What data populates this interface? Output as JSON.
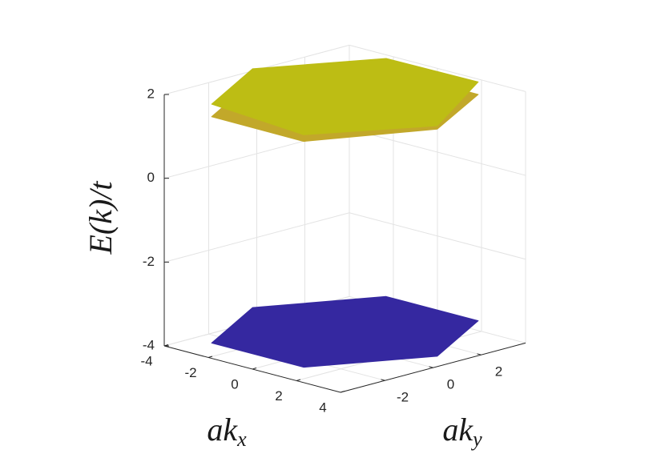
{
  "chart_data": {
    "type": "surface3d",
    "xlabel": {
      "base": "ak",
      "subscript": "x"
    },
    "ylabel": {
      "base": "ak",
      "subscript": "y"
    },
    "zlabel": "E(k)/t",
    "xlim": [
      -4,
      4
    ],
    "ylim": [
      -3.85,
      3.85
    ],
    "zlim": [
      -4,
      2
    ],
    "xticks": [
      -4,
      -2,
      0,
      2,
      4
    ],
    "yticks": [
      -2,
      0,
      2
    ],
    "zticks": [
      -4,
      -2,
      0,
      2
    ],
    "grid": true,
    "vertices_x": [
      4.19,
      2.09,
      -2.09,
      -4.19,
      -2.09,
      2.09
    ],
    "vertices_y": [
      0,
      3.63,
      3.63,
      0,
      -3.63,
      -3.63
    ],
    "series": [
      {
        "color": "#3528a0",
        "values": [
          -3.7,
          -3.7,
          -3.7,
          -3.7,
          -3.7,
          -3.7
        ]
      },
      {
        "color": "#c2a82a",
        "values": [
          1.72,
          1.7,
          1.72,
          1.7,
          1.7,
          1.69
        ]
      },
      {
        "color": "#bdbd14",
        "values": [
          1.8,
          2.0,
          1.98,
          2.0,
          2.0,
          1.85
        ]
      }
    ]
  }
}
